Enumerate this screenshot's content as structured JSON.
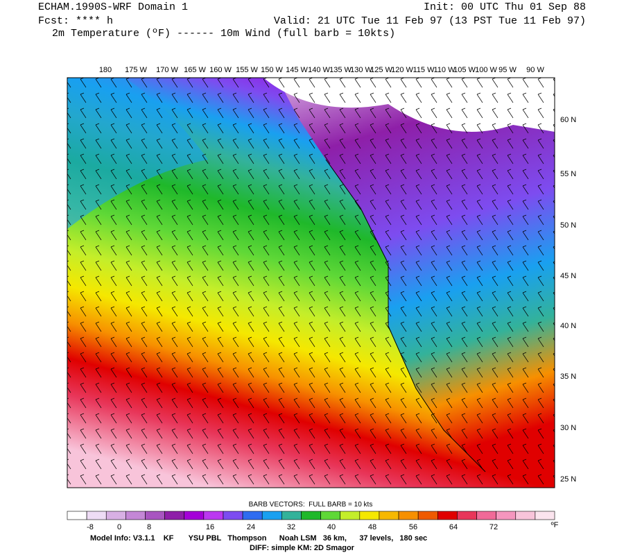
{
  "header": {
    "title": "ECHAM.1990S-WRF Domain 1",
    "init": "Init: 00 UTC Thu 01 Sep 88",
    "forecast": "Fcst: **** h",
    "valid": "Valid: 21 UTC Tue 11 Feb 97 (13 PST Tue 11 Feb 97)",
    "fields": "2m Temperature (ºF) ------ 10m Wind (full barb = 10kts)"
  },
  "map": {
    "longitude_labels": [
      "180",
      "175 W",
      "170 W",
      "165 W",
      "160 W",
      "155 W",
      "150 W",
      "145 W",
      "140 W",
      "135 W",
      "130 W",
      "125 W",
      "120 W",
      "115 W",
      "110 W",
      "105 W",
      "100 W",
      "95 W",
      "90 W"
    ],
    "latitude_labels": [
      "60 N",
      "55 N",
      "50 N",
      "45 N",
      "40 N",
      "35 N",
      "30 N",
      "25 N"
    ]
  },
  "colorbar": {
    "title": "BARB VECTORS:  FULL BARB = 10 kts",
    "colors": [
      "#ffffff",
      "#eedcf5",
      "#d8b0e4",
      "#c487d6",
      "#a855c0",
      "#8e1fa8",
      "#a400d8",
      "#bb38f0",
      "#7d4cf0",
      "#2f6cf0",
      "#19a0f0",
      "#33b29a",
      "#1fb82a",
      "#5fd837",
      "#c4ee2a",
      "#f5e800",
      "#f7b800",
      "#f79000",
      "#ef5a00",
      "#e00000",
      "#e8365a",
      "#f06a98",
      "#f596be",
      "#f8c4da",
      "#fbe4ee"
    ],
    "labels": [
      "-8",
      "0",
      "8",
      "16",
      "24",
      "32",
      "40",
      "48",
      "56",
      "64",
      "72"
    ],
    "unit": "ºF"
  },
  "footer": {
    "model_info": "Model Info: V3.1.1    KF       YSU PBL   Thompson      Noah LSM   36 km,      37 levels,   180 sec",
    "diff": "DIFF: simple KM: 2D Smagor"
  }
}
